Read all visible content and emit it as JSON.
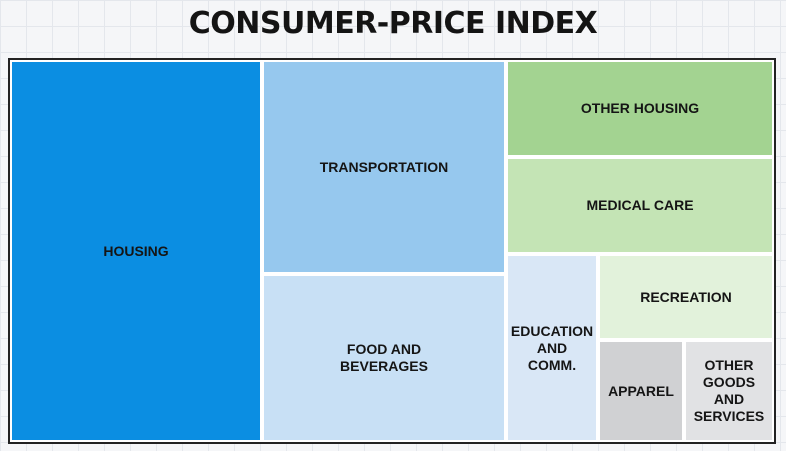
{
  "title": "CONSUMER-PRICE INDEX",
  "chart_data": {
    "type": "treemap",
    "title": "CONSUMER-PRICE INDEX",
    "categories": [
      {
        "label": "HOUSING",
        "color": "#0b8ee2"
      },
      {
        "label": "TRANSPORTATION",
        "color": "#96c8ee"
      },
      {
        "label": "FOOD AND\nBEVERAGES",
        "color": "#c8e0f5"
      },
      {
        "label": "OTHER HOUSING",
        "color": "#a3d391"
      },
      {
        "label": "MEDICAL CARE",
        "color": "#c4e4b5"
      },
      {
        "label": "EDUCATION\nAND\nCOMM.",
        "color": "#d9e7f6"
      },
      {
        "label": "RECREATION",
        "color": "#e2f2db"
      },
      {
        "label": "APPAREL",
        "color": "#d0d1d3"
      },
      {
        "label": "OTHER\nGOODS\nAND\nSERVICES",
        "color": "#e1e2e4"
      }
    ]
  }
}
